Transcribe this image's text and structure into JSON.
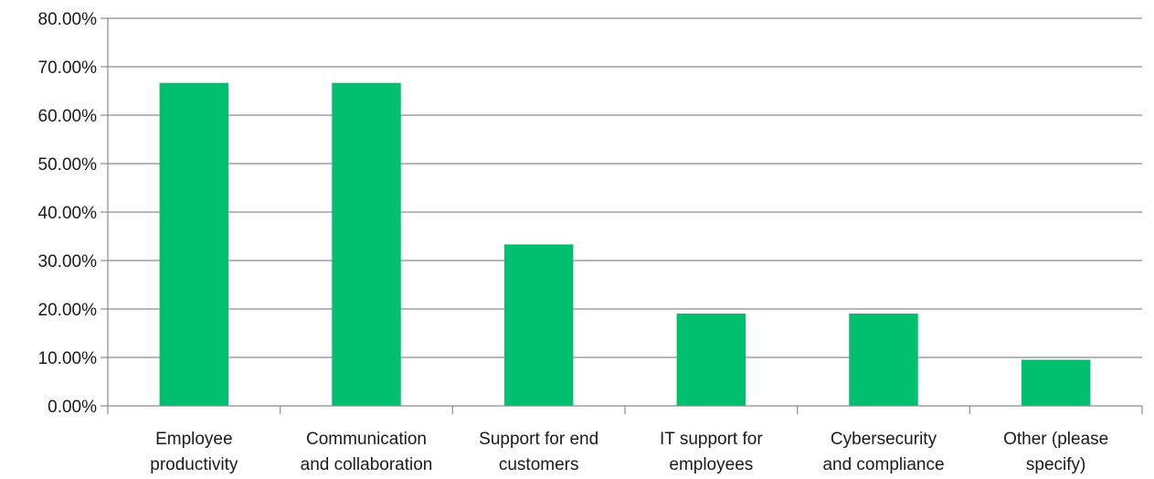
{
  "chart_data": {
    "type": "bar",
    "title": "",
    "xlabel": "",
    "ylabel": "",
    "categories": [
      [
        "Employee",
        "productivity"
      ],
      [
        "Communication",
        "and collaboration"
      ],
      [
        "Support for end",
        "customers"
      ],
      [
        "IT support for",
        "employees"
      ],
      [
        "Cybersecurity",
        "and compliance"
      ],
      [
        "Other (please",
        "specify)"
      ]
    ],
    "values": [
      66.67,
      66.67,
      33.33,
      19.05,
      19.05,
      9.52
    ],
    "ylim": [
      0,
      80
    ],
    "yticks": [
      0,
      10,
      20,
      30,
      40,
      50,
      60,
      70,
      80
    ],
    "ytick_labels": [
      "0.00%",
      "10.00%",
      "20.00%",
      "30.00%",
      "40.00%",
      "50.00%",
      "60.00%",
      "70.00%",
      "80.00%"
    ],
    "grid": true,
    "legend": "none",
    "bar_color": "#00BF6F",
    "grid_color": "#8c8c8c"
  }
}
